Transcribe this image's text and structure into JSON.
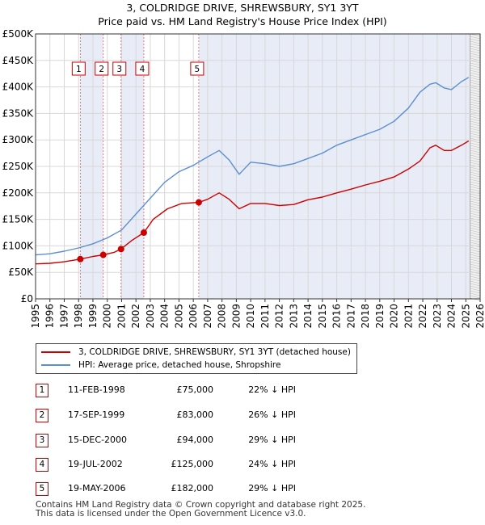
{
  "title_line1": "3, COLDRIDGE DRIVE, SHREWSBURY, SY1 3YT",
  "title_line2": "Price paid vs. HM Land Registry's House Price Index (HPI)",
  "chart_data": {
    "type": "line",
    "title": "3, COLDRIDGE DRIVE, SHREWSBURY, SY1 3YT — Price paid vs. HM Land Registry's House Price Index (HPI)",
    "xlim": [
      1995,
      2026
    ],
    "ylim": [
      0,
      500000
    ],
    "x_ticks": [
      "1995",
      "1996",
      "1997",
      "1998",
      "1999",
      "2000",
      "2001",
      "2002",
      "2003",
      "2004",
      "2005",
      "2006",
      "2007",
      "2008",
      "2009",
      "2010",
      "2011",
      "2012",
      "2013",
      "2014",
      "2015",
      "2016",
      "2017",
      "2018",
      "2019",
      "2020",
      "2021",
      "2022",
      "2023",
      "2024",
      "2025",
      "2026"
    ],
    "y_ticks": [
      {
        "value": 0,
        "label": "£0"
      },
      {
        "value": 50000,
        "label": "£50K"
      },
      {
        "value": 100000,
        "label": "£100K"
      },
      {
        "value": 150000,
        "label": "£150K"
      },
      {
        "value": 200000,
        "label": "£200K"
      },
      {
        "value": 250000,
        "label": "£250K"
      },
      {
        "value": 300000,
        "label": "£300K"
      },
      {
        "value": 350000,
        "label": "£350K"
      },
      {
        "value": 400000,
        "label": "£400K"
      },
      {
        "value": 450000,
        "label": "£450K"
      },
      {
        "value": 500000,
        "label": "£500K"
      }
    ],
    "grid": true,
    "series": [
      {
        "name": "3, COLDRIDGE DRIVE, SHREWSBURY, SY1 3YT (detached house)",
        "color": "#cc0000",
        "points": [
          [
            1995.0,
            66000
          ],
          [
            1996.0,
            67000
          ],
          [
            1997.0,
            70000
          ],
          [
            1998.12,
            75000
          ],
          [
            1999.0,
            80000
          ],
          [
            1999.72,
            83000
          ],
          [
            2000.5,
            88000
          ],
          [
            2000.96,
            94000
          ],
          [
            2001.7,
            110000
          ],
          [
            2002.55,
            125000
          ],
          [
            2003.2,
            150000
          ],
          [
            2004.2,
            170000
          ],
          [
            2005.2,
            180000
          ],
          [
            2006.38,
            182000
          ],
          [
            2007.0,
            188000
          ],
          [
            2007.8,
            200000
          ],
          [
            2008.5,
            188000
          ],
          [
            2009.2,
            170000
          ],
          [
            2010.0,
            180000
          ],
          [
            2011.0,
            180000
          ],
          [
            2012.0,
            176000
          ],
          [
            2013.0,
            178000
          ],
          [
            2014.0,
            187000
          ],
          [
            2015.0,
            192000
          ],
          [
            2016.0,
            200000
          ],
          [
            2017.0,
            207000
          ],
          [
            2018.0,
            215000
          ],
          [
            2019.0,
            222000
          ],
          [
            2020.0,
            230000
          ],
          [
            2021.0,
            245000
          ],
          [
            2021.8,
            260000
          ],
          [
            2022.5,
            285000
          ],
          [
            2022.9,
            290000
          ],
          [
            2023.5,
            280000
          ],
          [
            2024.0,
            280000
          ],
          [
            2024.7,
            290000
          ],
          [
            2025.2,
            298000
          ]
        ]
      },
      {
        "name": "HPI: Average price, detached house, Shropshire",
        "color": "#5b8fd0",
        "points": [
          [
            1995.0,
            83000
          ],
          [
            1996.0,
            85000
          ],
          [
            1997.0,
            90000
          ],
          [
            1998.0,
            96000
          ],
          [
            1999.0,
            104000
          ],
          [
            2000.0,
            115000
          ],
          [
            2001.0,
            130000
          ],
          [
            2002.0,
            160000
          ],
          [
            2003.0,
            190000
          ],
          [
            2004.0,
            220000
          ],
          [
            2005.0,
            240000
          ],
          [
            2006.0,
            252000
          ],
          [
            2007.0,
            268000
          ],
          [
            2007.8,
            280000
          ],
          [
            2008.5,
            262000
          ],
          [
            2009.2,
            235000
          ],
          [
            2010.0,
            258000
          ],
          [
            2011.0,
            255000
          ],
          [
            2012.0,
            250000
          ],
          [
            2013.0,
            255000
          ],
          [
            2014.0,
            265000
          ],
          [
            2015.0,
            275000
          ],
          [
            2016.0,
            290000
          ],
          [
            2017.0,
            300000
          ],
          [
            2018.0,
            310000
          ],
          [
            2019.0,
            320000
          ],
          [
            2020.0,
            335000
          ],
          [
            2021.0,
            360000
          ],
          [
            2021.8,
            390000
          ],
          [
            2022.5,
            405000
          ],
          [
            2022.9,
            408000
          ],
          [
            2023.5,
            398000
          ],
          [
            2024.0,
            395000
          ],
          [
            2024.7,
            410000
          ],
          [
            2025.2,
            418000
          ]
        ]
      }
    ],
    "transactions": [
      {
        "id": "1",
        "x": 1998.12,
        "date": "11-FEB-1998",
        "value": 75000,
        "price": "£75,000",
        "hpi": "22% ↓ HPI"
      },
      {
        "id": "2",
        "x": 1999.72,
        "date": "17-SEP-1999",
        "value": 83000,
        "price": "£83,000",
        "hpi": "26% ↓ HPI"
      },
      {
        "id": "3",
        "x": 2000.96,
        "date": "15-DEC-2000",
        "value": 94000,
        "price": "£94,000",
        "hpi": "29% ↓ HPI"
      },
      {
        "id": "4",
        "x": 2002.55,
        "date": "19-JUL-2002",
        "value": 125000,
        "price": "£125,000",
        "hpi": "24% ↓ HPI"
      },
      {
        "id": "5",
        "x": 2006.38,
        "date": "19-MAY-2006",
        "value": 182000,
        "price": "£182,000",
        "hpi": "29% ↓ HPI"
      }
    ],
    "shaded_ranges": [
      [
        1998.12,
        1999.72
      ],
      [
        2000.96,
        2002.55
      ],
      [
        2006.38,
        2025.3
      ]
    ],
    "future_from": 2025.3
  },
  "legend": {
    "property_label": "3, COLDRIDGE DRIVE, SHREWSBURY, SY1 3YT (detached house)",
    "hpi_label": "HPI: Average price, detached house, Shropshire"
  },
  "footer_line1": "Contains HM Land Registry data © Crown copyright and database right 2025.",
  "footer_line2": "This data is licensed under the Open Government Licence v3.0."
}
